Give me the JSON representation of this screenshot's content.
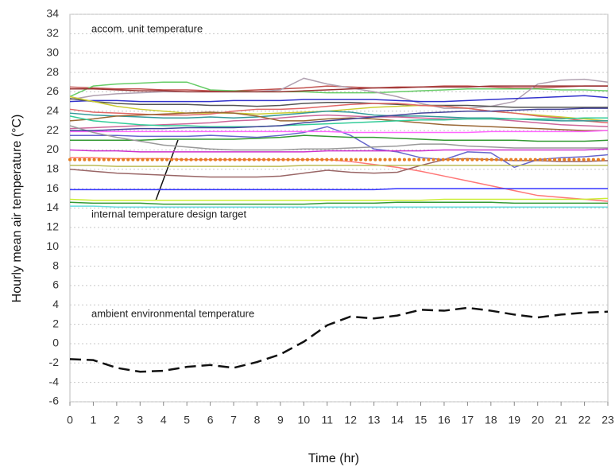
{
  "chart_data": {
    "type": "line",
    "y_label": "Hourly mean air temperature (°C)",
    "x_label": "Time (hr)",
    "annotations": [
      "accom. unit temperature",
      "internal temperature design target",
      "ambient environmental temperature"
    ],
    "x": [
      0,
      1,
      2,
      3,
      4,
      5,
      6,
      7,
      8,
      9,
      10,
      11,
      12,
      13,
      14,
      15,
      16,
      17,
      18,
      19,
      20,
      21,
      22,
      23
    ],
    "xlim": [
      0,
      23
    ],
    "xticks": [
      0,
      1,
      2,
      3,
      4,
      5,
      6,
      7,
      8,
      9,
      10,
      11,
      12,
      13,
      14,
      15,
      16,
      17,
      18,
      19,
      20,
      21,
      22,
      23
    ],
    "ylim": [
      -6,
      34
    ],
    "yticks": [
      -6,
      -4,
      -2,
      0,
      2,
      4,
      6,
      8,
      10,
      12,
      14,
      16,
      18,
      20,
      22,
      24,
      26,
      28,
      30,
      32,
      34
    ],
    "grid": true,
    "series": [
      {
        "color": "#c0504d",
        "values": [
          26.5,
          26.4,
          26.3,
          26.3,
          26.2,
          26.2,
          26.1,
          26.1,
          26.2,
          26.3,
          26.4,
          26.6,
          26.5,
          26.4,
          26.5,
          26.5,
          26.6,
          26.6,
          26.5,
          26.4,
          26.4,
          26.5,
          26.6,
          26.6
        ]
      },
      {
        "color": "#66cc66",
        "values": [
          25.5,
          26.6,
          26.8,
          26.9,
          27.0,
          27.0,
          26.2,
          26.1,
          26.0,
          26.0,
          26.0,
          25.9,
          25.9,
          25.9,
          26.0,
          26.1,
          26.2,
          26.3,
          26.3,
          26.3,
          26.3,
          26.2,
          26.2,
          26.1
        ]
      },
      {
        "color": "#b0a0b0",
        "values": [
          25.2,
          25.6,
          25.8,
          25.9,
          26.0,
          26.0,
          26.0,
          26.0,
          26.0,
          26.2,
          27.4,
          26.8,
          26.4,
          26.0,
          25.5,
          24.8,
          24.3,
          24.3,
          24.5,
          25.0,
          26.8,
          27.2,
          27.3,
          27.0
        ]
      },
      {
        "color": "#3333cc",
        "values": [
          25.0,
          25.1,
          25.1,
          25.0,
          25.0,
          25.0,
          25.0,
          25.1,
          25.1,
          25.1,
          25.2,
          25.2,
          25.2,
          25.2,
          25.1,
          25.0,
          25.0,
          25.1,
          25.2,
          25.3,
          25.4,
          25.5,
          25.6,
          25.4
        ]
      },
      {
        "color": "#555555",
        "values": [
          25.3,
          25.0,
          24.8,
          24.7,
          24.7,
          24.7,
          24.6,
          24.6,
          24.5,
          24.6,
          24.8,
          24.9,
          24.9,
          24.8,
          24.7,
          24.6,
          24.6,
          24.6,
          24.5,
          24.4,
          24.4,
          24.4,
          24.4,
          24.4
        ]
      },
      {
        "color": "#cccc33",
        "values": [
          25.5,
          25.0,
          24.5,
          24.2,
          24.0,
          23.8,
          23.8,
          23.8,
          23.7,
          23.8,
          23.9,
          24.0,
          24.2,
          24.4,
          24.5,
          24.6,
          24.5,
          24.3,
          24.0,
          23.8,
          23.6,
          23.4,
          23.2,
          23.0
        ]
      },
      {
        "color": "#e06666",
        "values": [
          24.2,
          23.9,
          23.8,
          23.7,
          23.6,
          23.6,
          23.7,
          24.0,
          24.2,
          24.2,
          24.3,
          24.5,
          24.7,
          24.8,
          24.8,
          24.6,
          24.5,
          24.3,
          24.0,
          23.8,
          23.5,
          23.3,
          23.0,
          22.8
        ]
      },
      {
        "color": "#339999",
        "values": [
          23.8,
          23.6,
          23.5,
          23.4,
          23.3,
          23.3,
          23.4,
          23.3,
          23.4,
          23.6,
          23.8,
          24.0,
          23.9,
          23.6,
          23.5,
          23.5,
          23.4,
          23.3,
          23.3,
          23.2,
          23.1,
          23.0,
          23.0,
          23.0
        ]
      },
      {
        "color": "#cc6699",
        "values": [
          22.2,
          22.3,
          22.4,
          22.5,
          22.6,
          22.7,
          22.8,
          23.0,
          23.1,
          23.3,
          23.5,
          23.6,
          23.5,
          23.4,
          23.4,
          23.3,
          23.2,
          23.2,
          23.2,
          23.0,
          22.8,
          22.6,
          22.5,
          22.4
        ]
      },
      {
        "color": "#996633",
        "values": [
          23.0,
          23.2,
          23.5,
          23.6,
          23.7,
          23.8,
          23.9,
          23.8,
          23.5,
          23.0,
          23.0,
          23.2,
          23.3,
          23.2,
          23.0,
          22.8,
          22.6,
          22.5,
          22.4,
          22.3,
          22.2,
          22.1,
          22.0,
          22.0
        ]
      },
      {
        "color": "#6666cc",
        "values": [
          21.5,
          21.5,
          21.5,
          21.4,
          21.4,
          21.4,
          21.5,
          21.4,
          21.3,
          21.5,
          21.8,
          22.4,
          21.5,
          20.1,
          19.8,
          19.2,
          19.0,
          19.8,
          19.7,
          18.2,
          19.0,
          19.2,
          19.3,
          19.5
        ]
      },
      {
        "color": "#ff66ff",
        "values": [
          21.9,
          21.9,
          21.9,
          21.9,
          21.9,
          21.9,
          21.9,
          21.9,
          21.9,
          21.9,
          21.9,
          21.9,
          21.8,
          21.8,
          21.8,
          21.8,
          21.8,
          21.8,
          21.9,
          21.9,
          21.9,
          21.9,
          21.9,
          22.0
        ]
      },
      {
        "color": "#339933",
        "values": [
          21.0,
          21.0,
          21.0,
          21.0,
          21.1,
          21.1,
          21.1,
          21.1,
          21.2,
          21.3,
          21.5,
          21.4,
          21.3,
          21.3,
          21.2,
          21.1,
          21.0,
          21.0,
          21.0,
          21.0,
          20.9,
          20.9,
          20.9,
          21.0
        ]
      },
      {
        "color": "#999999",
        "values": [
          22.5,
          21.8,
          21.3,
          20.9,
          20.5,
          20.3,
          20.1,
          20.0,
          20.0,
          20.0,
          20.1,
          20.1,
          20.2,
          20.3,
          20.4,
          20.6,
          20.6,
          20.4,
          20.3,
          20.2,
          20.2,
          20.2,
          20.2,
          20.2
        ]
      },
      {
        "color": "#cc33cc",
        "values": [
          20.0,
          19.9,
          19.9,
          19.8,
          19.8,
          19.8,
          19.8,
          19.8,
          19.8,
          19.8,
          19.8,
          19.9,
          19.9,
          19.9,
          19.9,
          19.9,
          20.0,
          20.0,
          20.0,
          20.0,
          20.0,
          20.0,
          20.0,
          20.1
        ]
      },
      {
        "color": "#ff7777",
        "values": [
          19.2,
          19.2,
          19.1,
          19.1,
          19.1,
          19.0,
          19.0,
          19.0,
          19.0,
          19.0,
          19.0,
          19.0,
          18.8,
          18.5,
          18.2,
          17.8,
          17.3,
          16.8,
          16.3,
          15.8,
          15.3,
          15.1,
          14.9,
          14.7
        ]
      },
      {
        "color": "#996666",
        "values": [
          18.0,
          17.8,
          17.6,
          17.5,
          17.4,
          17.3,
          17.2,
          17.2,
          17.2,
          17.3,
          17.6,
          17.9,
          17.7,
          17.6,
          17.7,
          18.4,
          19.0,
          19.1,
          19.0,
          18.9,
          18.9,
          18.8,
          18.8,
          18.9
        ]
      },
      {
        "color": "#bbbb55",
        "values": [
          18.4,
          18.4,
          18.3,
          18.3,
          18.3,
          18.3,
          18.3,
          18.3,
          18.3,
          18.3,
          18.4,
          18.4,
          18.4,
          18.4,
          18.4,
          18.4,
          18.4,
          18.4,
          18.4,
          18.4,
          18.4,
          18.4,
          18.4,
          18.4
        ]
      },
      {
        "color": "#3333ff",
        "values": [
          15.9,
          15.9,
          15.9,
          15.9,
          15.9,
          15.9,
          15.9,
          15.9,
          15.9,
          15.9,
          15.9,
          15.9,
          15.9,
          15.9,
          16.0,
          16.0,
          16.0,
          16.0,
          16.0,
          16.0,
          16.0,
          16.0,
          16.0,
          16.0
        ]
      },
      {
        "color": "#ccee33",
        "values": [
          14.9,
          14.8,
          14.8,
          14.8,
          14.8,
          14.8,
          14.8,
          14.8,
          14.8,
          14.8,
          14.8,
          14.8,
          14.8,
          14.8,
          14.8,
          14.8,
          14.9,
          14.9,
          14.9,
          14.9,
          14.9,
          14.9,
          14.9,
          15.0
        ]
      },
      {
        "color": "#339933",
        "values": [
          14.6,
          14.5,
          14.5,
          14.5,
          14.4,
          14.4,
          14.4,
          14.4,
          14.4,
          14.4,
          14.4,
          14.5,
          14.5,
          14.5,
          14.6,
          14.6,
          14.6,
          14.6,
          14.6,
          14.5,
          14.5,
          14.5,
          14.5,
          14.5
        ]
      },
      {
        "color": "#66dddd",
        "values": [
          14.2,
          14.2,
          14.1,
          14.1,
          14.1,
          14.1,
          14.1,
          14.1,
          14.1,
          14.1,
          14.1,
          14.1,
          14.1,
          14.1,
          14.1,
          14.1,
          14.1,
          14.1,
          14.1,
          14.1,
          14.1,
          14.1,
          14.1,
          14.1
        ]
      },
      {
        "color": "#993333",
        "values": [
          26.3,
          26.3,
          26.2,
          26.1,
          26.1,
          26.0,
          26.0,
          26.0,
          26.0,
          26.0,
          26.1,
          26.2,
          26.3,
          26.4,
          26.4,
          26.5,
          26.5,
          26.5,
          26.6,
          26.6,
          26.6,
          26.6,
          26.6,
          26.6
        ]
      },
      {
        "color": "#33cc99",
        "values": [
          23.5,
          23.0,
          22.8,
          22.6,
          22.5,
          22.5,
          22.4,
          22.4,
          22.4,
          22.5,
          22.6,
          22.7,
          22.8,
          22.9,
          23.0,
          23.1,
          23.1,
          23.2,
          23.2,
          23.2,
          23.2,
          23.2,
          23.3,
          23.3
        ]
      },
      {
        "color": "#444499",
        "values": [
          22.0,
          22.0,
          22.1,
          22.2,
          22.2,
          22.3,
          22.3,
          22.3,
          22.4,
          22.5,
          22.8,
          23.0,
          23.2,
          23.4,
          23.6,
          23.8,
          23.9,
          24.0,
          24.0,
          24.1,
          24.2,
          24.2,
          24.3,
          24.3
        ]
      },
      {
        "color": "#e67e22",
        "style": "dotted",
        "values": [
          19,
          19,
          19,
          19,
          19,
          19,
          19,
          19,
          19,
          19,
          19,
          19,
          19,
          19,
          19,
          19,
          19,
          19,
          19,
          19,
          19,
          19,
          19,
          19
        ]
      },
      {
        "color": "#111111",
        "style": "dashed",
        "values": [
          -1.6,
          -1.7,
          -2.5,
          -2.9,
          -2.8,
          -2.4,
          -2.2,
          -2.5,
          -1.9,
          -1.1,
          0.2,
          1.9,
          2.8,
          2.6,
          2.9,
          3.5,
          3.4,
          3.7,
          3.4,
          3.0,
          2.7,
          3.0,
          3.2,
          3.3
        ]
      }
    ]
  }
}
